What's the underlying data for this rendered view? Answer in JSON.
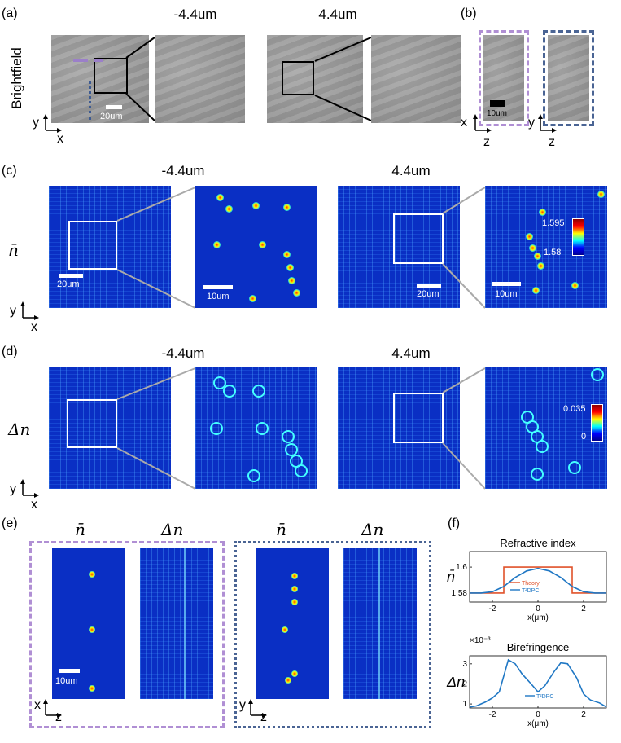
{
  "panel_labels": {
    "a": "(a)",
    "b": "(b)",
    "c": "(c)",
    "d": "(d)",
    "e": "(e)",
    "f": "(f)"
  },
  "row_a": {
    "side_label": "Brightfield",
    "left_title": "-4.4um",
    "right_title": "4.4um",
    "scale": "20um"
  },
  "row_b": {
    "scale": "10um",
    "axis1_vert": "x",
    "axis1_horiz": "z",
    "axis2_vert": "y",
    "axis2_horiz": "z"
  },
  "row_c": {
    "side_label": "n̄",
    "left_title": "-4.4um",
    "right_title": "4.4um",
    "scale_left": "20um",
    "scale_zoom_left": "10um",
    "scale_right": "20um",
    "scale_zoom_right": "10um",
    "colorbar_max": "1.595",
    "colorbar_min": "1.58"
  },
  "row_d": {
    "side_label": "Δn",
    "left_title": "-4.4um",
    "right_title": "4.4um",
    "colorbar_max": "0.035",
    "colorbar_min": "0"
  },
  "axes_xy": {
    "y": "y",
    "x": "x"
  },
  "row_e": {
    "nbar": "n̄",
    "dn": "Δn",
    "nbar2": "n̄",
    "dn2": "Δn",
    "scale": "10um",
    "ax1_v": "x",
    "ax1_h": "z",
    "ax2_v": "y",
    "ax2_h": "z"
  },
  "colors": {
    "purple": "#b08fd4",
    "navy": "#4a6494",
    "theory": "#e0522a",
    "dpc": "#1f77c4"
  },
  "chart_data": [
    {
      "type": "line",
      "title": "Refractive index",
      "ylabel": "n̄",
      "xlabel": "x(μm)",
      "xlim": [
        -3,
        3
      ],
      "ylim": [
        1.573,
        1.612
      ],
      "xticks": [
        "-2",
        "0",
        "2"
      ],
      "yticks": [
        "1.58",
        "1.6"
      ],
      "series": [
        {
          "name": "Theory",
          "x": [
            -3,
            -1.5,
            -1.5,
            1.5,
            1.5,
            3
          ],
          "y": [
            1.58,
            1.58,
            1.6,
            1.6,
            1.58,
            1.58
          ]
        },
        {
          "name": "T²DPC",
          "x": [
            -3,
            -2.5,
            -2,
            -1.5,
            -1,
            -0.5,
            0,
            0.5,
            1,
            1.5,
            2,
            2.5,
            3
          ],
          "y": [
            1.58,
            1.58,
            1.581,
            1.585,
            1.592,
            1.597,
            1.599,
            1.597,
            1.592,
            1.585,
            1.581,
            1.58,
            1.58
          ]
        }
      ]
    },
    {
      "type": "line",
      "title": "Birefringence",
      "ylabel": "Δn",
      "xlabel": "x(μm)",
      "multiplier": "×10⁻³",
      "xlim": [
        -3,
        3
      ],
      "ylim": [
        0.8,
        3.4
      ],
      "xticks": [
        "-2",
        "0",
        "2"
      ],
      "yticks": [
        "1",
        "2",
        "3"
      ],
      "series": [
        {
          "name": "T²DPC",
          "x": [
            -3,
            -2.7,
            -2.3,
            -2,
            -1.7,
            -1.3,
            -1,
            -0.7,
            -0.3,
            0,
            0.3,
            0.7,
            1,
            1.3,
            1.7,
            2,
            2.3,
            2.7,
            3
          ],
          "y": [
            0.85,
            0.9,
            1.1,
            1.3,
            1.6,
            3.2,
            3.0,
            2.5,
            2.0,
            1.6,
            1.9,
            2.6,
            3.05,
            3.0,
            2.3,
            1.5,
            1.2,
            1.05,
            0.85
          ]
        }
      ]
    }
  ]
}
